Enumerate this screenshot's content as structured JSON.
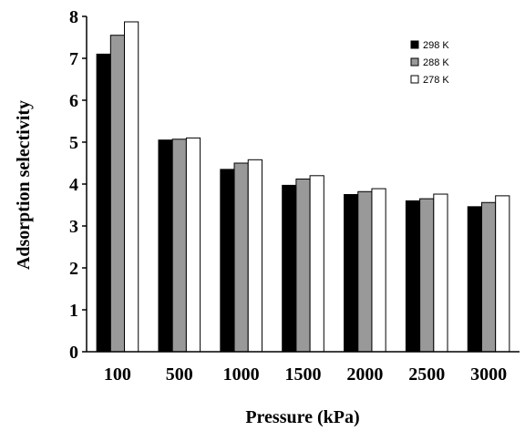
{
  "chart_data": {
    "type": "bar",
    "xlabel": "Pressure (kPa)",
    "ylabel": "Adsorption selectivity",
    "ylim": [
      0,
      8
    ],
    "yticks": [
      "0",
      "1",
      "2",
      "3",
      "4",
      "5",
      "6",
      "7",
      "8"
    ],
    "categories": [
      "100",
      "500",
      "1000",
      "1500",
      "2000",
      "2500",
      "3000"
    ],
    "series": [
      {
        "name": "298 K",
        "color": "#000000",
        "values": [
          7.1,
          5.05,
          4.35,
          3.97,
          3.75,
          3.6,
          3.46
        ]
      },
      {
        "name": "288 K",
        "color": "#999999",
        "values": [
          7.55,
          5.07,
          4.5,
          4.12,
          3.82,
          3.65,
          3.56
        ]
      },
      {
        "name": "278 K",
        "color": "#ffffff",
        "values": [
          7.87,
          5.1,
          4.58,
          4.2,
          3.89,
          3.76,
          3.72
        ]
      }
    ],
    "legend_position": "top-right",
    "grid": false
  }
}
